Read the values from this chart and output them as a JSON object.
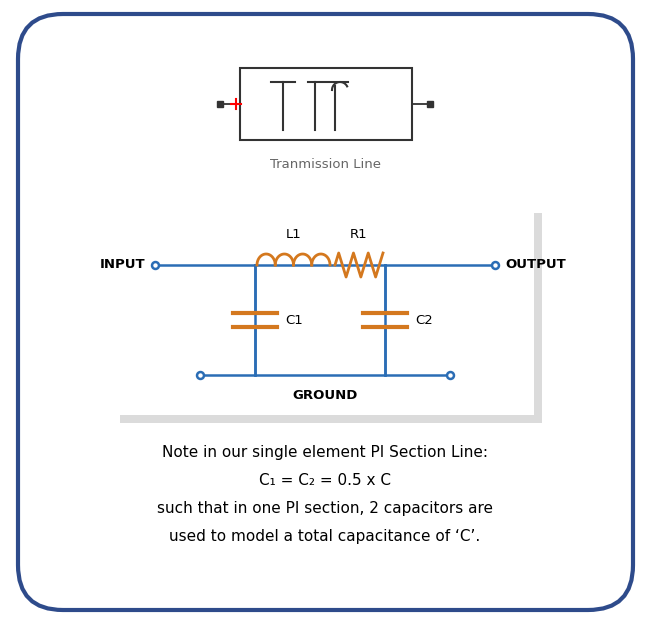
{
  "bg_color": "#ffffff",
  "outer_border_color": "#2e4b8b",
  "outer_border_lw": 3.0,
  "title_block_label": "Tranmission Line",
  "title_block_label_color": "#666666",
  "title_block_label_fontsize": 9.5,
  "circuit_line_color": "#2b6db5",
  "circuit_lw": 1.8,
  "inductor_color": "#d4781e",
  "resistor_color": "#d4781e",
  "cap_color": "#d4781e",
  "note_line1": "Note in our single element PI Section Line:",
  "note_line2": "C₁ = C₂ = 0.5 x C",
  "note_line3": "such that in one PI section, 2 capacitors are",
  "note_line4": "used to model a total capacitance of ‘C’.",
  "note_fontsize": 11.0
}
